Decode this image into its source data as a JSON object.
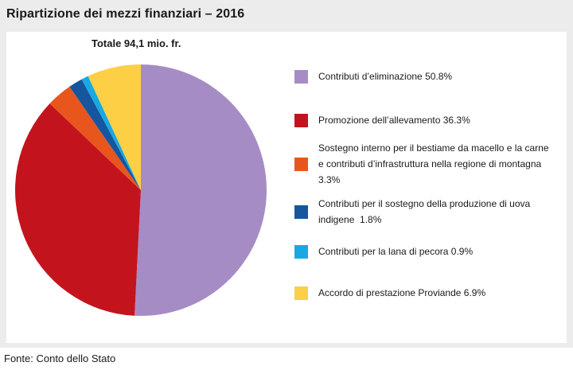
{
  "header": {
    "title": "Ripartizione dei mezzi finanziari – 2016"
  },
  "footer": {
    "source": "Fonte: Conto dello Stato"
  },
  "chart_data": {
    "type": "pie",
    "title": "Ripartizione dei mezzi finanziari – 2016",
    "subtitle": "Totale 94,1 mio. fr.",
    "total_mio_fr": 94.1,
    "unit": "percent",
    "start_angle": "12-oclock",
    "direction": "clockwise",
    "legend_position": "right",
    "slices": [
      {
        "label": "Contributi d’eliminazione",
        "value_pct": 50.8,
        "color": "#a68cc5",
        "legend": "Contributi d’eliminazione 50.8%"
      },
      {
        "label": "Promozione dell’allevamento",
        "value_pct": 36.3,
        "color": "#c3141d",
        "legend": "Promozione dell’allevamento 36.3%"
      },
      {
        "label": "Sostegno interno per il bestiame da macello e la carne e contributi d’infrastruttura nella regione di montagna",
        "value_pct": 3.3,
        "color": "#e9561d",
        "legend": "Sostegno interno per il bestiame da macello e la carne e contributi d’infrastruttura nella regione di montagna 3.3%"
      },
      {
        "label": "Contributi per il sostegno della produzione di uova indigene",
        "value_pct": 1.8,
        "color": "#15569f",
        "legend": "Contributi per il sostegno della produzione di uova indigene  1.8%"
      },
      {
        "label": "Contributi per la lana di pecora",
        "value_pct": 0.9,
        "color": "#19a9e2",
        "legend": "Contributi per la lana di pecora 0.9%"
      },
      {
        "label": "Accordo di prestazione Proviande",
        "value_pct": 6.9,
        "color": "#fccf45",
        "legend": "Accordo di prestazione Proviande 6.9%"
      }
    ]
  }
}
